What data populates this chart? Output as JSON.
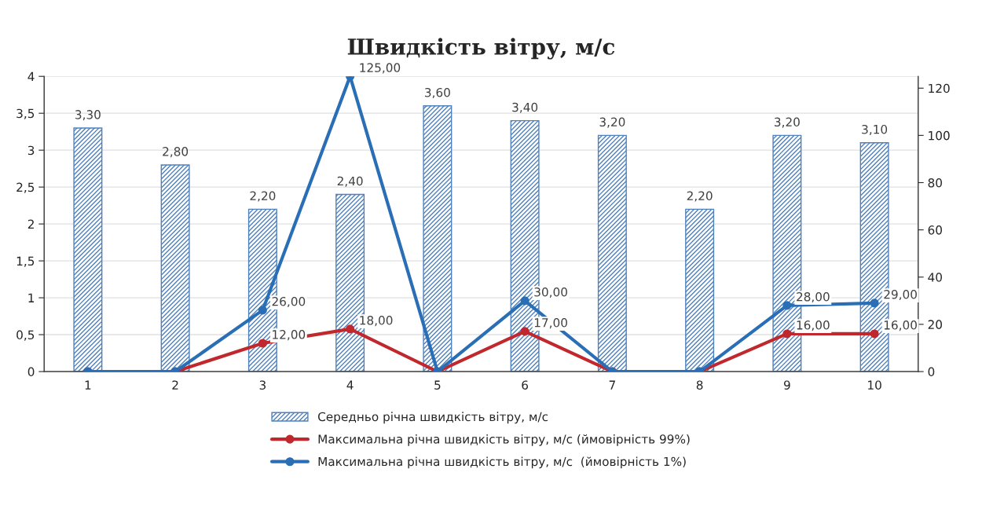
{
  "chart_data": {
    "type": "bar",
    "title": "Швидкість вітру, м/с",
    "categories": [
      "1",
      "2",
      "3",
      "4",
      "5",
      "6",
      "7",
      "8",
      "9",
      "10"
    ],
    "series": [
      {
        "name": "Середньо річна швидкість вітру, м/с",
        "color": "#4f81bd",
        "values": [
          3.3,
          2.8,
          2.2,
          2.4,
          3.6,
          3.4,
          3.2,
          2.2,
          3.2,
          3.1
        ],
        "value_labels": [
          "3,30",
          "2,80",
          "2,20",
          "2,40",
          "3,60",
          "3,40",
          "3,20",
          "2,20",
          "3,20",
          "3,10"
        ]
      },
      {
        "name": "Максимальна річна швидкість вітру, м/с (ймовірність 99%)",
        "type": "line",
        "axis": "y2",
        "color": "#c0282e",
        "values": [
          0,
          0,
          12,
          18,
          0,
          17,
          0,
          0,
          16,
          16
        ],
        "value_labels": [
          null,
          null,
          "12,00",
          "18,00",
          null,
          "17,00",
          null,
          null,
          "16,00",
          "16,00"
        ]
      },
      {
        "name": "Максимальна річна швидкість вітру, м/с  (ймовірність 1%)",
        "type": "line",
        "axis": "y2",
        "color": "#2a6fb5",
        "values": [
          0,
          0,
          26,
          125,
          0,
          30,
          0,
          0,
          28,
          29
        ],
        "value_labels": [
          null,
          null,
          "26,00",
          "125,00",
          null,
          "30,00",
          null,
          null,
          "28,00",
          "29,00"
        ]
      }
    ],
    "ylim": [
      0,
      4
    ],
    "yticks": [
      0,
      {
        "value": 0.5,
        "label": "0,5"
      },
      1,
      {
        "value": 1.5,
        "label": "1,5"
      },
      2,
      {
        "value": 2.5,
        "label": "2,5"
      },
      3,
      {
        "value": 3.5,
        "label": "3,5"
      },
      4
    ],
    "y2lim": [
      0,
      125
    ],
    "y2ticks": [
      0,
      20,
      40,
      60,
      80,
      100,
      120
    ],
    "grid": "y",
    "legend": "bottom",
    "marker": "circle",
    "line_style": "solid"
  }
}
